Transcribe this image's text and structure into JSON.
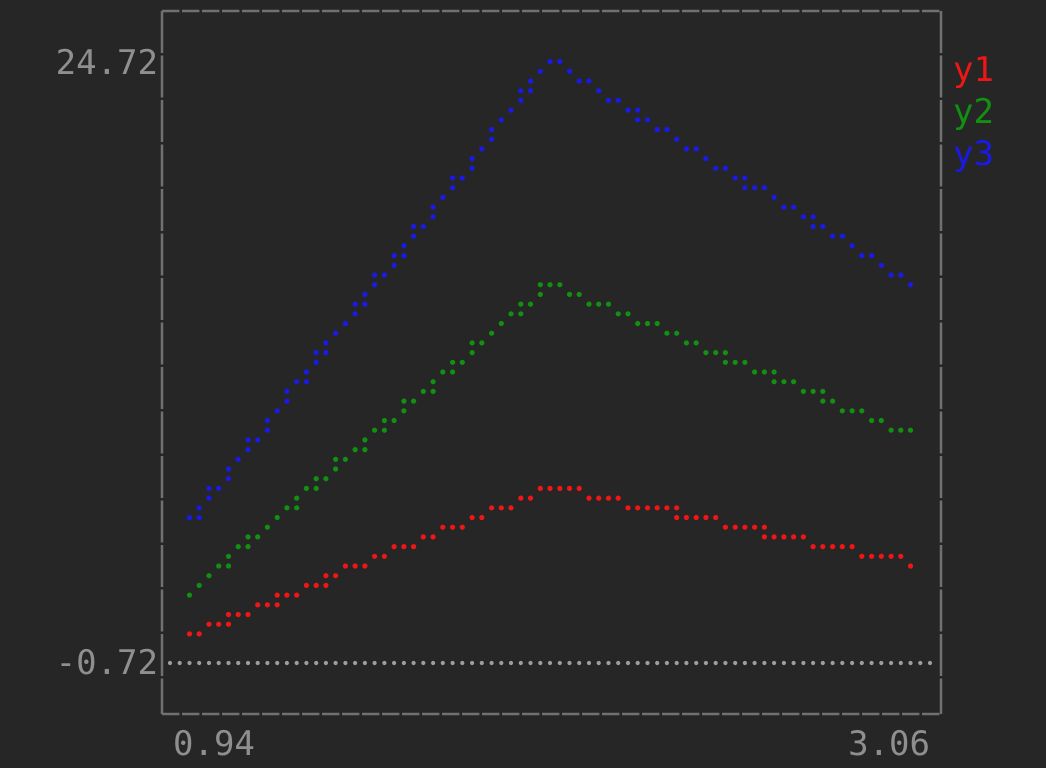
{
  "chart_data": {
    "type": "scatter",
    "title": "",
    "xlabel": "",
    "ylabel": "",
    "grid": false,
    "legend_position": "right-outside",
    "x_min_label": "0.94",
    "x_max_label": "3.06",
    "y_min_label": "-0.72",
    "y_max_label": "24.72",
    "xlim": [
      0.94,
      3.06
    ],
    "ylim": [
      -0.72,
      24.72
    ],
    "marker": "dot",
    "line_style": "dotted",
    "series": [
      {
        "name": "y1",
        "color": "#f11616",
        "points": [
          [
            1.0,
            0.5
          ],
          [
            2.0,
            6.7
          ],
          [
            3.0,
            3.55
          ]
        ]
      },
      {
        "name": "y2",
        "color": "#129012",
        "points": [
          [
            1.0,
            2.3
          ],
          [
            2.0,
            15.3
          ],
          [
            3.0,
            8.95
          ]
        ]
      },
      {
        "name": "y3",
        "color": "#1a1ae8",
        "points": [
          [
            1.0,
            5.3
          ],
          [
            2.0,
            24.72
          ],
          [
            3.0,
            15.35
          ]
        ]
      }
    ],
    "baseline": {
      "value": -0.72,
      "x_extent": [
        0.94,
        3.06
      ],
      "color": "#9e9e9e"
    }
  },
  "colors": {
    "background": "#262626",
    "frame": "#717171",
    "axis_text": "#8f8f8f"
  }
}
